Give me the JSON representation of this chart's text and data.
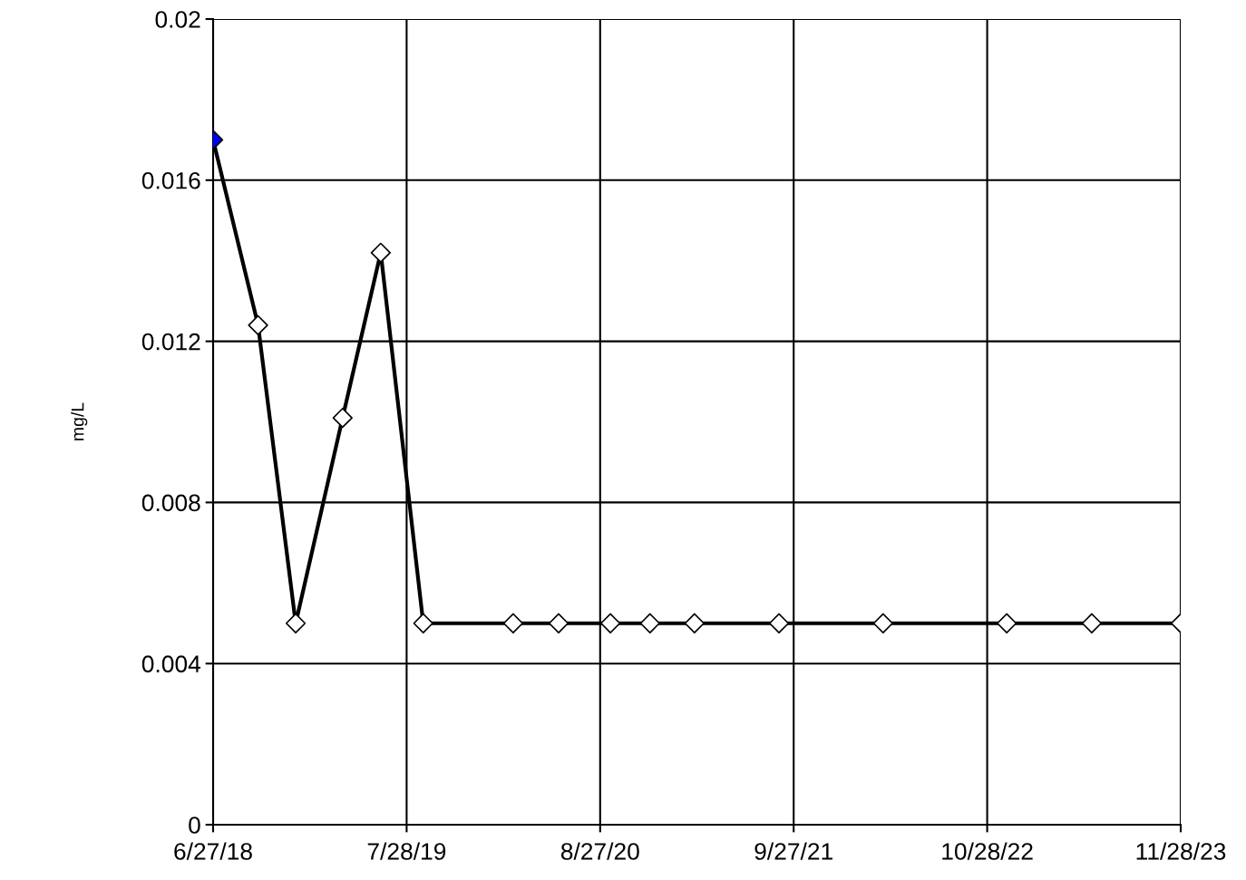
{
  "chart_data": {
    "type": "line",
    "ylabel": "mg/L",
    "x": [
      "2018-06-27",
      "2018-09-27",
      "2018-12-13",
      "2019-03-19",
      "2019-06-05",
      "2019-08-31",
      "2020-03-02",
      "2020-06-03",
      "2020-09-17",
      "2020-12-07",
      "2021-03-08",
      "2021-08-28",
      "2022-03-29",
      "2022-12-07",
      "2023-05-30",
      "2023-11-28"
    ],
    "series": [
      {
        "color": "#000000",
        "values": [
          0.017,
          0.0124,
          0.005,
          0.0101,
          0.0142,
          0.005,
          0.005,
          0.005,
          0.005,
          0.005,
          0.005,
          0.005,
          0.005,
          0.005,
          0.005,
          0.005
        ],
        "colors": [
          "#0000ff",
          "#ffffff",
          "#ffffff",
          "#ffffff",
          "#ffffff",
          "#ffffff",
          "#ffffff",
          "#ffffff",
          "#ffffff",
          "#ffffff",
          "#ffffff",
          "#ffffff",
          "#ffffff",
          "#ffffff",
          "#ffffff",
          "#ffffff"
        ]
      }
    ],
    "xlim": [
      "2018-06-27",
      "2023-11-28"
    ],
    "xticks": [
      {
        "value": "2018-06-27",
        "label": "6/27/18"
      },
      {
        "value": "2019-07-28",
        "label": "7/28/19"
      },
      {
        "value": "2020-08-27",
        "label": "8/27/20"
      },
      {
        "value": "2021-09-27",
        "label": "9/27/21"
      },
      {
        "value": "2022-10-28",
        "label": "10/28/22"
      },
      {
        "value": "2023-11-28",
        "label": "11/28/23"
      }
    ],
    "ylim": [
      0,
      0.02
    ],
    "yticks": [
      0,
      0.004,
      0.008,
      0.012,
      0.016,
      0.02
    ],
    "grid": true,
    "marker": "diamond",
    "line_style": "solid"
  }
}
